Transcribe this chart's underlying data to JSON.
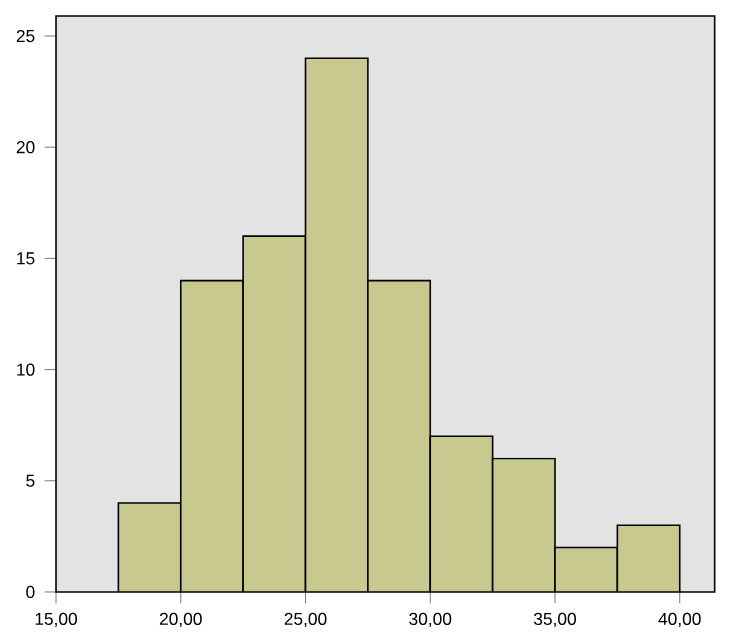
{
  "chart_data": {
    "type": "histogram",
    "bins": [
      17.5,
      20,
      22.5,
      25,
      27.5,
      30,
      32.5,
      35,
      37.5,
      40
    ],
    "values": [
      4,
      14,
      16,
      24,
      14,
      7,
      6,
      2,
      3
    ],
    "color": "#c8c98e",
    "xlim": [
      15,
      41.4
    ],
    "ylim": [
      0,
      25.9
    ],
    "xticks": [
      {
        "value": 15,
        "label": "15,00"
      },
      {
        "value": 20,
        "label": "20,00"
      },
      {
        "value": 25,
        "label": "25,00"
      },
      {
        "value": 30,
        "label": "30,00"
      },
      {
        "value": 35,
        "label": "35,00"
      },
      {
        "value": 40,
        "label": "40,00"
      }
    ],
    "yticks": [
      0,
      5,
      10,
      15,
      20,
      25
    ],
    "grid": false
  }
}
